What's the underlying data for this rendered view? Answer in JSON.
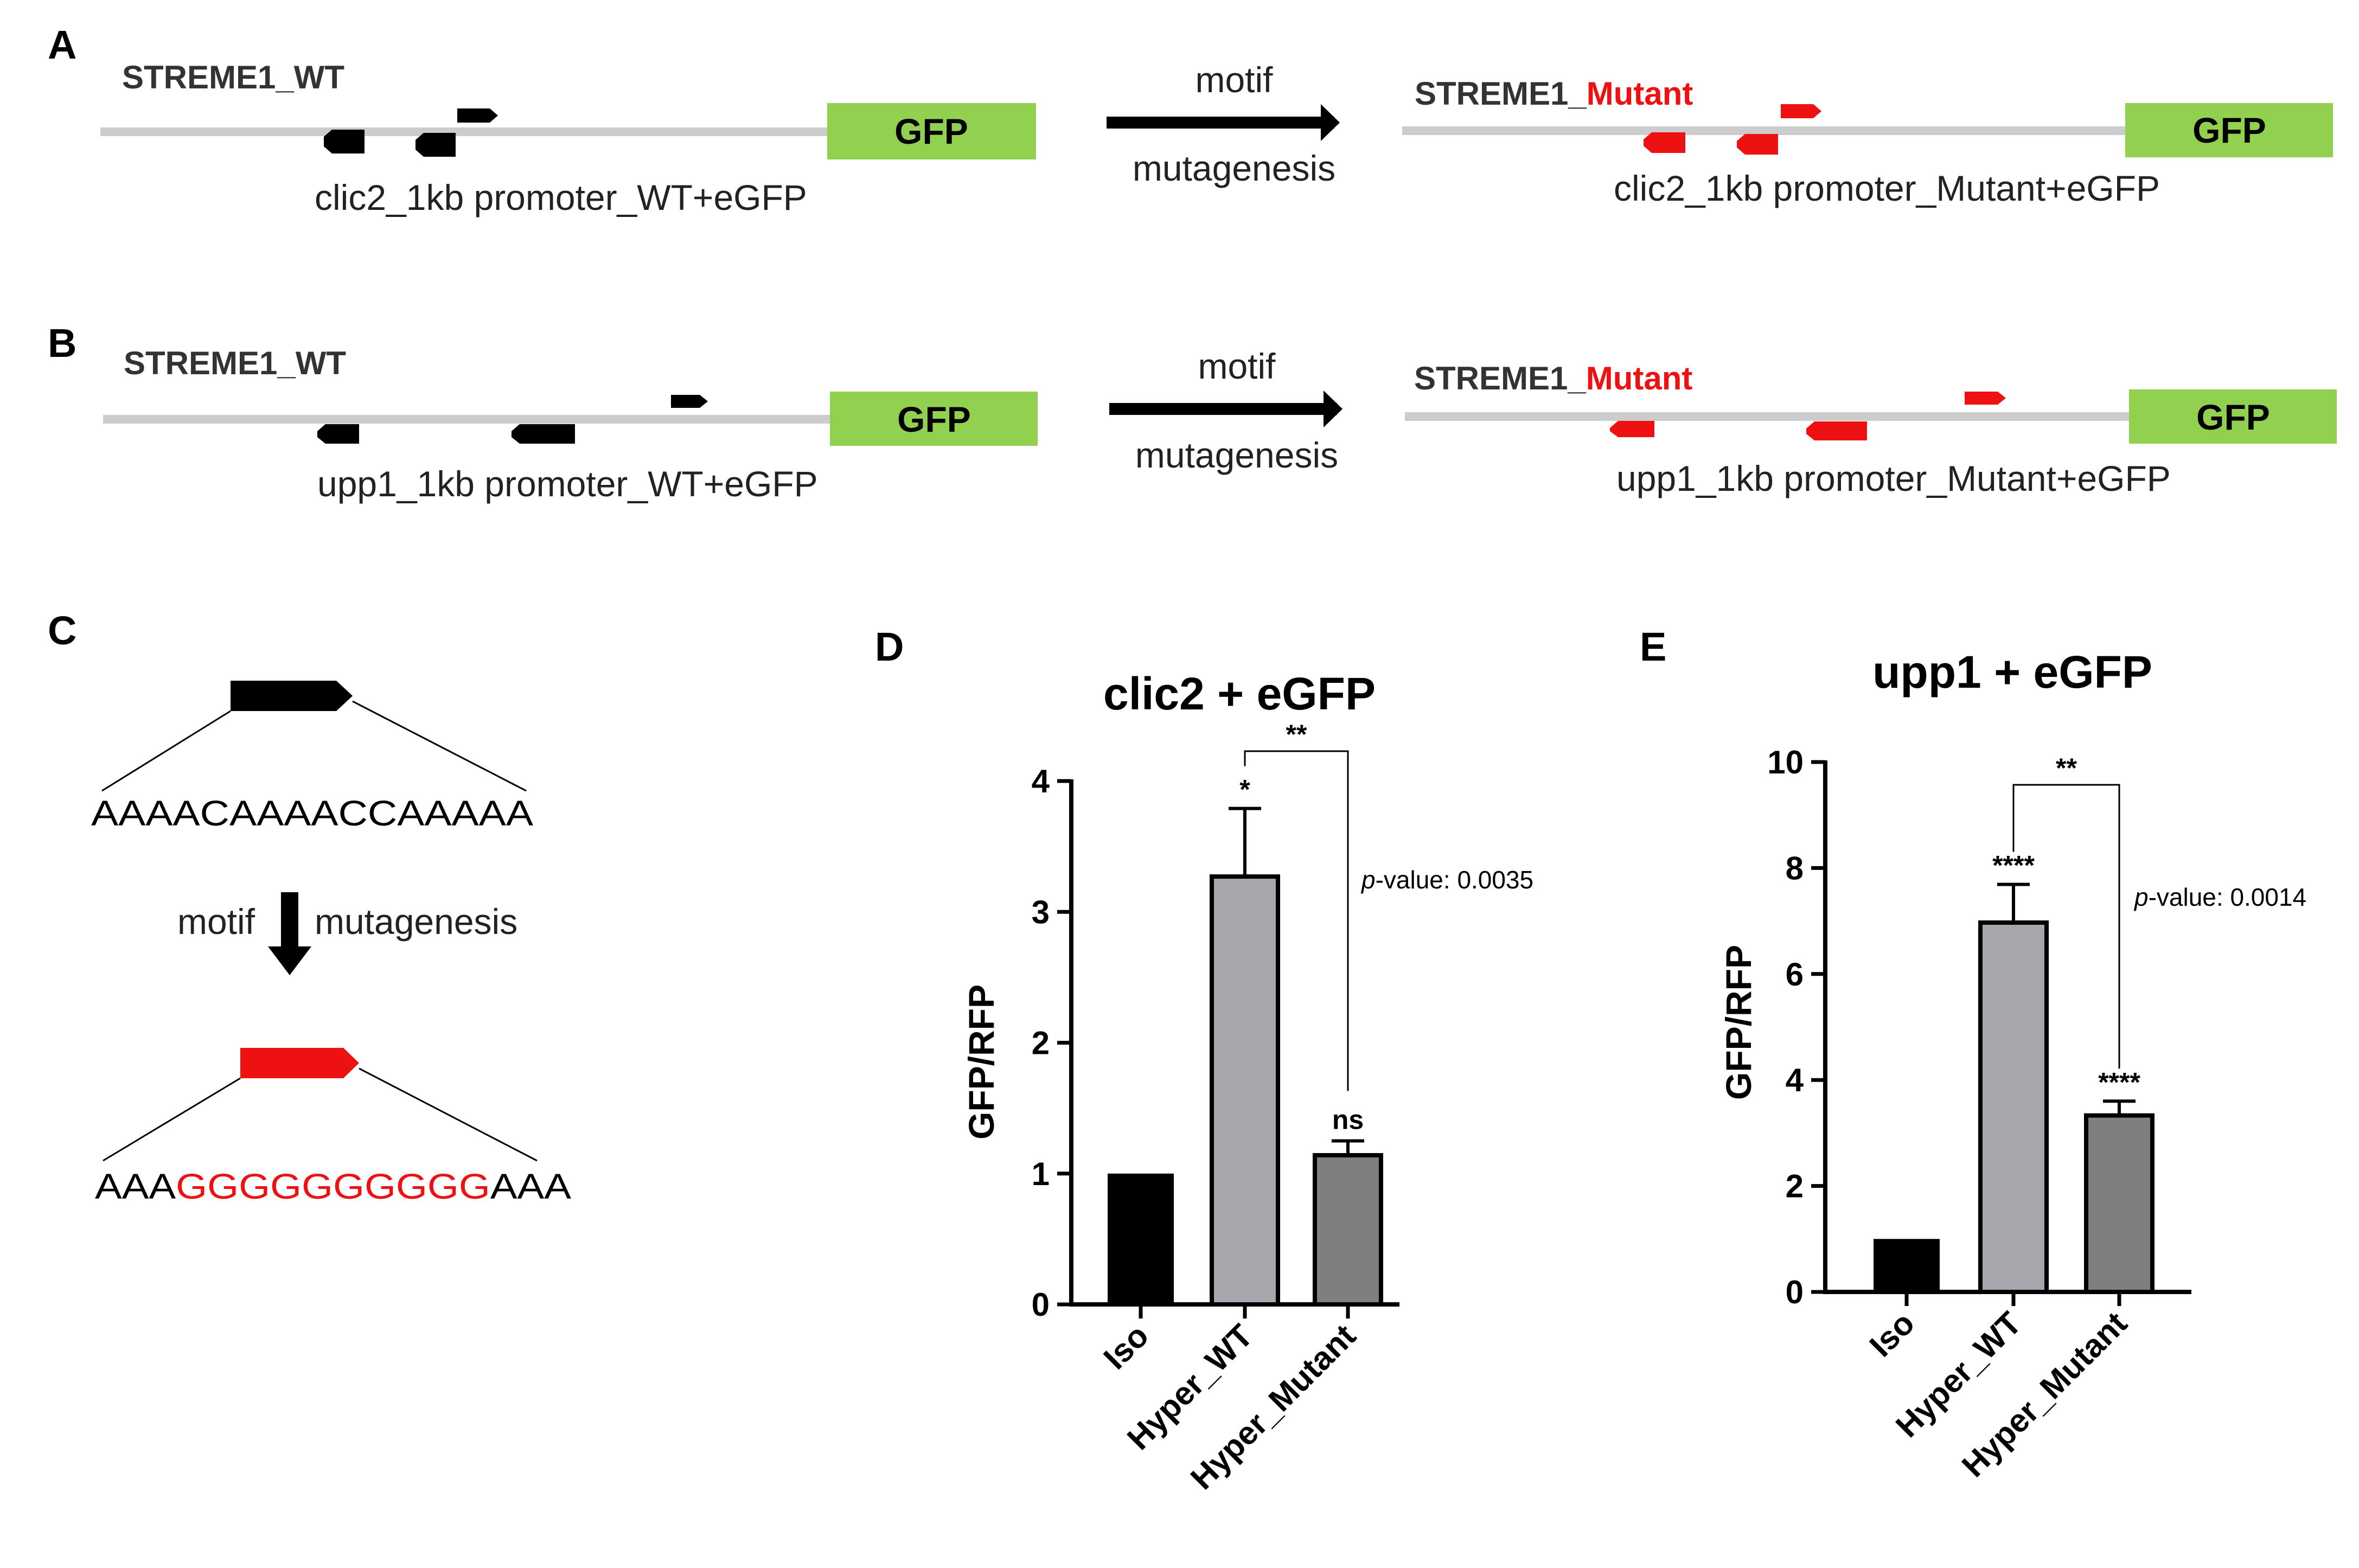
{
  "colors": {
    "black": "#000000",
    "red": "#ee1111",
    "gfp_green": "#92d050",
    "promoter_gray": "#cccccc",
    "bar_iso": "#000000",
    "bar_wt": "#a6a6ad",
    "bar_mutant": "#7f7f7f"
  },
  "panels": {
    "A": {
      "label": "A",
      "wt_construct": "STREME1_WT",
      "mut_construct_prefix": "STREME1_",
      "mut_construct_suffix": "Mutant",
      "gfp": "GFP",
      "wt_caption": "clic2_1kb promoter_WT+eGFP",
      "mut_caption": "clic2_1kb promoter_Mutant+eGFP",
      "arrow_top": "motif",
      "arrow_bottom": "mutagenesis"
    },
    "B": {
      "label": "B",
      "wt_construct": "STREME1_WT",
      "mut_construct_prefix": "STREME1_",
      "mut_construct_suffix": "Mutant",
      "gfp": "GFP",
      "wt_caption": "upp1_1kb promoter_WT+eGFP",
      "mut_caption": "upp1_1kb promoter_Mutant+eGFP",
      "arrow_top": "motif",
      "arrow_bottom": "mutagenesis"
    },
    "C": {
      "label": "C",
      "wt_sequence": "AAAACAAAACCAAAAA",
      "arrow_left": "motif",
      "arrow_right": "mutagenesis",
      "mut_seq_prefix": "AAA",
      "mut_seq_core": "GGGGGGGGGG",
      "mut_seq_suffix": "AAA"
    },
    "D": {
      "label": "D"
    },
    "E": {
      "label": "E"
    }
  },
  "chart_data": [
    {
      "type": "bar",
      "title": "clic2 + eGFP",
      "ylabel": "GFP/RFP",
      "xlabel": "",
      "categories": [
        "Iso",
        "Hyper_WT",
        "Hyper_Mutant"
      ],
      "values": [
        1.0,
        3.27,
        1.14
      ],
      "errors": [
        0,
        0.52,
        0.11
      ],
      "ylim": [
        0,
        4
      ],
      "yticks": [
        "0",
        "1",
        "2",
        "3",
        "4"
      ],
      "significance": [
        "",
        "*",
        "ns"
      ],
      "bracket": {
        "from": "Hyper_WT",
        "to": "Hyper_Mutant",
        "label": "**"
      },
      "pvalue_prefix": "p",
      "pvalue_suffix": "-value: 0.0035"
    },
    {
      "type": "bar",
      "title": "upp1 + eGFP",
      "ylabel": "GFP/RFP",
      "xlabel": "",
      "categories": [
        "Iso",
        "Hyper_WT",
        "Hyper_Mutant"
      ],
      "values": [
        1.0,
        6.97,
        3.33
      ],
      "errors": [
        0,
        0.72,
        0.27
      ],
      "ylim": [
        0,
        10
      ],
      "yticks": [
        "0",
        "2",
        "4",
        "6",
        "8",
        "10"
      ],
      "significance": [
        "",
        "****",
        "****"
      ],
      "bracket": {
        "from": "Hyper_WT",
        "to": "Hyper_Mutant",
        "label": "**"
      },
      "pvalue_prefix": "p",
      "pvalue_suffix": "-value: 0.0014"
    }
  ]
}
